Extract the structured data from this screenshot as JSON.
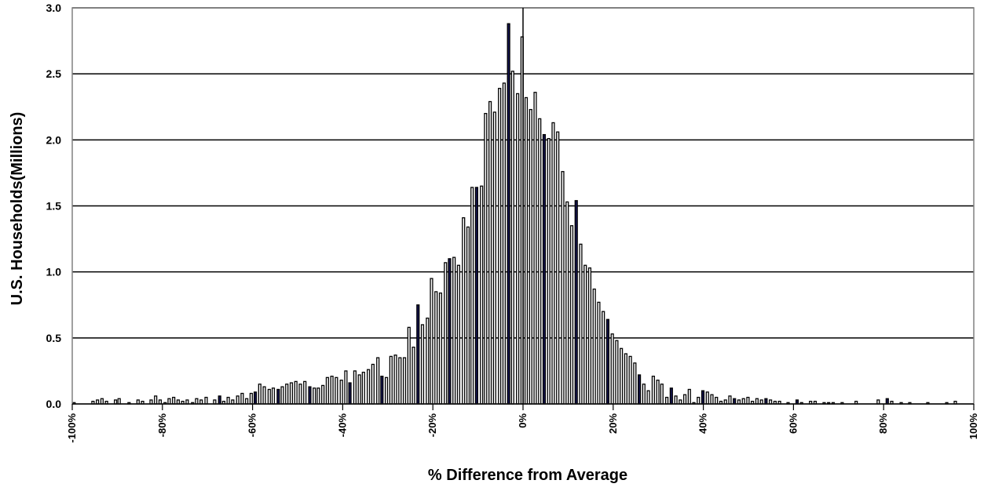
{
  "chart_data": {
    "type": "bar",
    "title": "",
    "xlabel": "% Difference from Average",
    "ylabel": "U.S. Households(Millions)",
    "xlim": [
      -100,
      100
    ],
    "ylim": [
      0,
      3.0
    ],
    "y_ticks": [
      "0.0",
      "0.5",
      "1.0",
      "1.5",
      "2.0",
      "2.5",
      "3.0"
    ],
    "x_ticks": [
      "-100%",
      "-80%",
      "-60%",
      "-40%",
      "-20%",
      "0%",
      "20%",
      "40%",
      "60%",
      "80%",
      "100%"
    ],
    "grid": "horizontal",
    "bar_colors": {
      "fill": "#ffffff",
      "stroke": "#000000",
      "highlight": "#141452"
    },
    "bin_width": 0.5,
    "series": [
      {
        "values": [
          [
            -99.6,
            0.01
          ],
          [
            -95.4,
            0.02
          ],
          [
            -94.4,
            0.03
          ],
          [
            -93.4,
            0.04
          ],
          [
            -92.4,
            0.02
          ],
          [
            -90.4,
            0.03
          ],
          [
            -89.6,
            0.04
          ],
          [
            -87.4,
            0.01
          ],
          [
            -85.4,
            0.03
          ],
          [
            -84.4,
            0.02
          ],
          [
            -82.5,
            0.03
          ],
          [
            -81.5,
            0.06
          ],
          [
            -80.5,
            0.03
          ],
          [
            -79.4,
            0.01
          ],
          [
            -78.5,
            0.04
          ],
          [
            -77.5,
            0.05
          ],
          [
            -76.5,
            0.03
          ],
          [
            -75.5,
            0.02
          ],
          [
            -74.5,
            0.03
          ],
          [
            -73.3,
            0.01
          ],
          [
            -72.4,
            0.04
          ],
          [
            -71.4,
            0.03
          ],
          [
            -70.3,
            0.05
          ],
          [
            -68.4,
            0.03
          ],
          [
            -67.3,
            0.06
          ],
          [
            -66.4,
            0.02
          ],
          [
            -65.4,
            0.05
          ],
          [
            -64.4,
            0.03
          ],
          [
            -63.3,
            0.06
          ],
          [
            -62.3,
            0.08
          ],
          [
            -61.3,
            0.04
          ],
          [
            -60.3,
            0.08
          ],
          [
            -59.4,
            0.09
          ],
          [
            -58.4,
            0.15
          ],
          [
            -57.4,
            0.13
          ],
          [
            -56.3,
            0.11
          ],
          [
            -55.4,
            0.12
          ],
          [
            -54.3,
            0.11
          ],
          [
            -53.4,
            0.13
          ],
          [
            -52.4,
            0.15
          ],
          [
            -51.4,
            0.16
          ],
          [
            -50.4,
            0.17
          ],
          [
            -49.4,
            0.15
          ],
          [
            -48.4,
            0.17
          ],
          [
            -47.3,
            0.13
          ],
          [
            -46.3,
            0.12
          ],
          [
            -45.4,
            0.12
          ],
          [
            -44.4,
            0.14
          ],
          [
            -43.4,
            0.2
          ],
          [
            -42.4,
            0.21
          ],
          [
            -41.4,
            0.2
          ],
          [
            -40.3,
            0.18
          ],
          [
            -39.3,
            0.25
          ],
          [
            -38.4,
            0.16
          ],
          [
            -37.3,
            0.25
          ],
          [
            -36.3,
            0.22
          ],
          [
            -35.4,
            0.24
          ],
          [
            -34.3,
            0.26
          ],
          [
            -33.3,
            0.3
          ],
          [
            -32.2,
            0.35
          ],
          [
            -31.3,
            0.21
          ],
          [
            -30.3,
            0.2
          ],
          [
            -29.3,
            0.36
          ],
          [
            -28.3,
            0.37
          ],
          [
            -27.3,
            0.35
          ],
          [
            -26.3,
            0.35
          ],
          [
            -25.3,
            0.58
          ],
          [
            -24.3,
            0.43
          ],
          [
            -23.3,
            0.75
          ],
          [
            -22.3,
            0.6
          ],
          [
            -21.2,
            0.65
          ],
          [
            -20.3,
            0.95
          ],
          [
            -19.3,
            0.85
          ],
          [
            -18.3,
            0.84
          ],
          [
            -17.2,
            1.07
          ],
          [
            -16.3,
            1.1
          ],
          [
            -15.3,
            1.11
          ],
          [
            -14.3,
            1.05
          ],
          [
            -13.2,
            1.41
          ],
          [
            -12.2,
            1.34
          ],
          [
            -11.3,
            1.64
          ],
          [
            -10.3,
            1.64
          ],
          [
            -9.2,
            1.65
          ],
          [
            -8.3,
            2.2
          ],
          [
            -7.3,
            2.29
          ],
          [
            -6.3,
            2.21
          ],
          [
            -5.2,
            2.39
          ],
          [
            -4.2,
            2.43
          ],
          [
            -3.2,
            2.88
          ],
          [
            -2.3,
            2.52
          ],
          [
            -1.2,
            2.35
          ],
          [
            -0.2,
            2.78
          ],
          [
            0.7,
            2.32
          ],
          [
            1.7,
            2.23
          ],
          [
            2.7,
            2.36
          ],
          [
            3.7,
            2.16
          ],
          [
            4.7,
            2.04
          ],
          [
            5.7,
            2.01
          ],
          [
            6.7,
            2.13
          ],
          [
            7.7,
            2.06
          ],
          [
            8.8,
            1.76
          ],
          [
            9.8,
            1.53
          ],
          [
            10.8,
            1.35
          ],
          [
            11.8,
            1.54
          ],
          [
            12.8,
            1.21
          ],
          [
            13.8,
            1.05
          ],
          [
            14.8,
            1.03
          ],
          [
            15.8,
            0.87
          ],
          [
            16.8,
            0.77
          ],
          [
            17.8,
            0.7
          ],
          [
            18.8,
            0.64
          ],
          [
            19.8,
            0.53
          ],
          [
            20.8,
            0.48
          ],
          [
            21.8,
            0.42
          ],
          [
            22.8,
            0.38
          ],
          [
            23.8,
            0.36
          ],
          [
            24.8,
            0.31
          ],
          [
            25.8,
            0.22
          ],
          [
            26.8,
            0.15
          ],
          [
            27.8,
            0.1
          ],
          [
            28.9,
            0.21
          ],
          [
            29.9,
            0.18
          ],
          [
            30.8,
            0.15
          ],
          [
            31.9,
            0.05
          ],
          [
            32.9,
            0.12
          ],
          [
            33.9,
            0.06
          ],
          [
            34.9,
            0.03
          ],
          [
            35.9,
            0.07
          ],
          [
            36.9,
            0.11
          ],
          [
            37.9,
            0.01
          ],
          [
            38.9,
            0.05
          ],
          [
            39.9,
            0.1
          ],
          [
            40.9,
            0.09
          ],
          [
            41.9,
            0.07
          ],
          [
            42.9,
            0.05
          ],
          [
            43.9,
            0.02
          ],
          [
            44.9,
            0.03
          ],
          [
            45.9,
            0.06
          ],
          [
            46.9,
            0.04
          ],
          [
            47.9,
            0.03
          ],
          [
            48.9,
            0.04
          ],
          [
            49.9,
            0.05
          ],
          [
            50.9,
            0.02
          ],
          [
            51.9,
            0.04
          ],
          [
            52.9,
            0.03
          ],
          [
            53.9,
            0.04
          ],
          [
            54.9,
            0.03
          ],
          [
            55.9,
            0.02
          ],
          [
            56.9,
            0.02
          ],
          [
            58.8,
            0.01
          ],
          [
            60.8,
            0.03
          ],
          [
            61.8,
            0.01
          ],
          [
            63.8,
            0.02
          ],
          [
            64.8,
            0.02
          ],
          [
            66.8,
            0.01
          ],
          [
            67.8,
            0.01
          ],
          [
            68.8,
            0.01
          ],
          [
            70.8,
            0.01
          ],
          [
            73.9,
            0.02
          ],
          [
            78.8,
            0.03
          ],
          [
            80.8,
            0.04
          ],
          [
            81.8,
            0.02
          ],
          [
            83.9,
            0.01
          ],
          [
            85.8,
            0.01
          ],
          [
            89.8,
            0.01
          ],
          [
            94.0,
            0.01
          ],
          [
            95.9,
            0.02
          ]
        ],
        "highlighted_x": [
          -67.3,
          -59.4,
          -54.3,
          -47.3,
          -38.4,
          -31.3,
          -23.3,
          -16.3,
          -10.3,
          -3.2,
          4.7,
          11.8,
          18.8,
          25.8,
          32.9,
          39.9,
          46.9,
          53.9,
          60.8,
          67.8,
          74.9,
          80.8
        ]
      }
    ]
  }
}
